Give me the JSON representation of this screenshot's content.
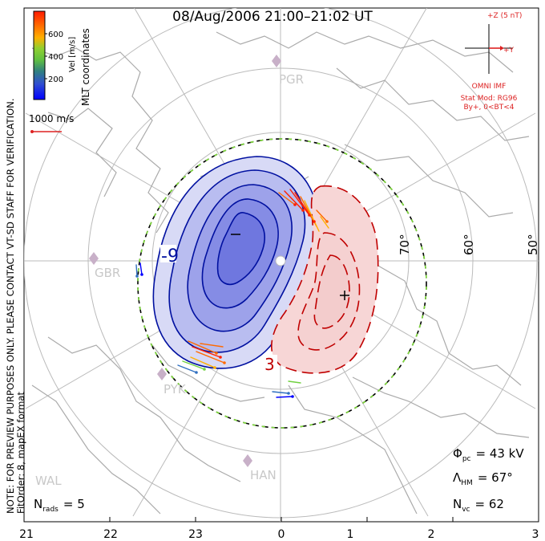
{
  "title": "08/Aug/2006 21:00–21:02 UT",
  "colorbar": {
    "label": "Vel [m/s]",
    "ticks": [
      "600",
      "400",
      "200"
    ],
    "colors": [
      "#0000ff",
      "#3070c0",
      "#50b050",
      "#70d040",
      "#ffb000",
      "#ff7000",
      "#ff2000"
    ]
  },
  "coord_label": "MLT coordinates",
  "reference_vector": {
    "label": "1000 m/s",
    "color": "#dd2222"
  },
  "imf": {
    "z_label": "+Z (5 nT)",
    "y_label": "+Y",
    "label": "OMNI IMF",
    "model": "Stat Mod: RG96",
    "condition": "By+, 0<BT<4"
  },
  "latitude_labels": [
    "70°",
    "60°",
    "50°"
  ],
  "radar_sites": [
    "PGR",
    "GBR",
    "PYK",
    "HAN",
    "WAL"
  ],
  "mlt_ticks": [
    "21",
    "22",
    "23",
    "0",
    "1",
    "2",
    "3"
  ],
  "contour_labels": {
    "neg": "-9",
    "pos": "3"
  },
  "watermark": "NOTE: FOR PREVIEW PURPOSES ONLY. PLEASE CONTACT VT-SD STAFF FOR VERIFICATION.",
  "fit_order": "FitOrder: 8, mapEX format",
  "stats": {
    "phi_pc": {
      "symbol": "Φ",
      "sub": "pc",
      "value": "= 43 kV"
    },
    "lambda_hm": {
      "symbol": "Λ",
      "sub": "HM",
      "value": "= 67°"
    },
    "n_vc": {
      "symbol": "N",
      "sub": "vc",
      "value": "= 62"
    },
    "n_rads": {
      "symbol": "N",
      "sub": "rads",
      "value": "= 5"
    }
  }
}
